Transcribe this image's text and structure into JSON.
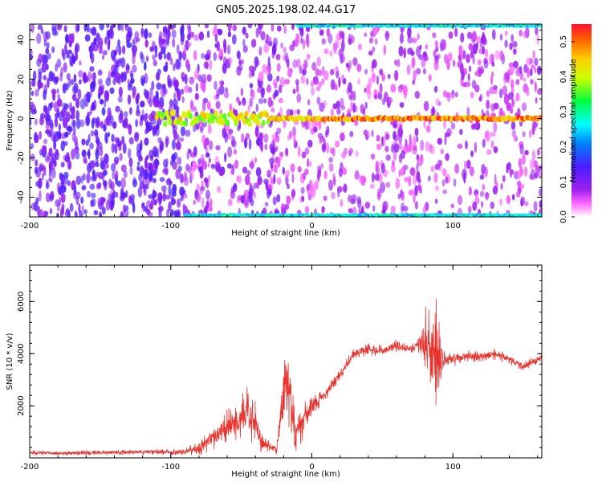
{
  "title": "GN05.2025.198.02.44.G17",
  "colors": {
    "snr_line": "#e8332f",
    "spectrogram_bg": "#ffffff",
    "frame": "#000000"
  },
  "chart_data": [
    {
      "type": "heatmap",
      "title": "GN05.2025.198.02.44.G17",
      "xlabel": "Height of straight line (km)",
      "ylabel": "Frequency (Hz)",
      "xlim": [
        -200,
        163
      ],
      "ylim": [
        -50,
        48
      ],
      "xticks": [
        -200,
        -100,
        0,
        100
      ],
      "yticks": [
        -40,
        -20,
        0,
        20,
        40
      ],
      "grid": false,
      "colorbar": {
        "label": "Normalized spectral amplitude",
        "range": [
          0.0,
          0.55
        ],
        "ticks": [
          0.0,
          0.1,
          0.2,
          0.3,
          0.4,
          0.5
        ],
        "colormap": "rainbow (white→magenta→violet→blue→cyan→green→yellow→orange→red)"
      },
      "features": [
        {
          "name": "dominant frequency line",
          "frequency_hz": 0,
          "x_range": [
            -110,
            163
          ],
          "peak_amplitude": 0.55
        },
        {
          "name": "upper edge band",
          "frequency_hz": 47,
          "x_range": [
            -10,
            163
          ]
        },
        {
          "name": "lower edge band",
          "frequency_hz": -49,
          "x_range": [
            -90,
            163
          ]
        }
      ]
    },
    {
      "type": "line",
      "xlabel": "Height of straight line (km)",
      "ylabel": "SNR (10 * v/v)",
      "xlim": [
        -200,
        163
      ],
      "ylim": [
        0,
        7400
      ],
      "xticks": [
        -200,
        -100,
        0,
        100
      ],
      "yticks": [
        2000,
        4000,
        6000
      ],
      "grid": false,
      "series": [
        {
          "x": [
            -200,
            -180,
            -160,
            -140,
            -120,
            -100,
            -90,
            -80,
            -70,
            -60,
            -50,
            -45,
            -40,
            -35,
            -30,
            -25,
            -20,
            -18,
            -15,
            -12,
            -10,
            -5,
            0,
            5,
            10,
            20,
            25,
            30,
            40,
            50,
            60,
            70,
            75,
            80,
            85,
            88,
            90,
            92,
            95,
            100,
            110,
            120,
            130,
            140,
            150,
            163
          ],
          "y": [
            200,
            180,
            200,
            210,
            230,
            220,
            250,
            350,
            800,
            1200,
            1500,
            1700,
            1300,
            600,
            400,
            350,
            2500,
            3300,
            2400,
            800,
            1200,
            1500,
            2000,
            2200,
            2500,
            3200,
            3600,
            4000,
            4200,
            4100,
            4300,
            4200,
            4300,
            4500,
            3700,
            4400,
            3800,
            3900,
            3700,
            3800,
            3900,
            3900,
            4000,
            3800,
            3500,
            3900
          ],
          "amp": [
            100,
            90,
            100,
            110,
            120,
            120,
            150,
            300,
            500,
            800,
            900,
            1200,
            900,
            500,
            200,
            300,
            1800,
            1900,
            1600,
            900,
            1100,
            800,
            500,
            300,
            300,
            250,
            250,
            250,
            250,
            250,
            250,
            250,
            300,
            1500,
            2600,
            3000,
            2400,
            1300,
            400,
            300,
            250,
            250,
            250,
            200,
            200,
            200
          ]
        }
      ]
    }
  ]
}
